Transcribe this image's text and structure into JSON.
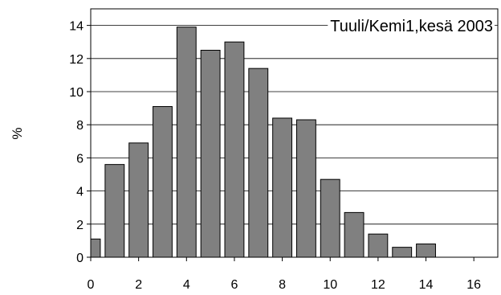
{
  "chart_data": {
    "type": "bar",
    "title": "Tuuli/Kemi1,kesä 2003",
    "xlabel": "",
    "ylabel": "%",
    "xlim": [
      0,
      17
    ],
    "ylim": [
      0,
      15
    ],
    "x_ticks": [
      "0",
      "2",
      "4",
      "6",
      "8",
      "10",
      "12",
      "14",
      "16"
    ],
    "y_ticks": [
      "0",
      "2",
      "4",
      "6",
      "8",
      "10",
      "12",
      "14"
    ],
    "grid": "horizontal",
    "legend": "none",
    "bar_color": "#808080",
    "x": [
      0,
      1,
      2,
      3,
      4,
      5,
      6,
      7,
      8,
      9,
      10,
      11,
      12,
      13,
      14
    ],
    "values": [
      1.1,
      5.6,
      6.9,
      9.1,
      13.9,
      12.5,
      13.0,
      11.4,
      8.4,
      8.3,
      4.7,
      2.7,
      1.4,
      0.6,
      0.8
    ]
  }
}
